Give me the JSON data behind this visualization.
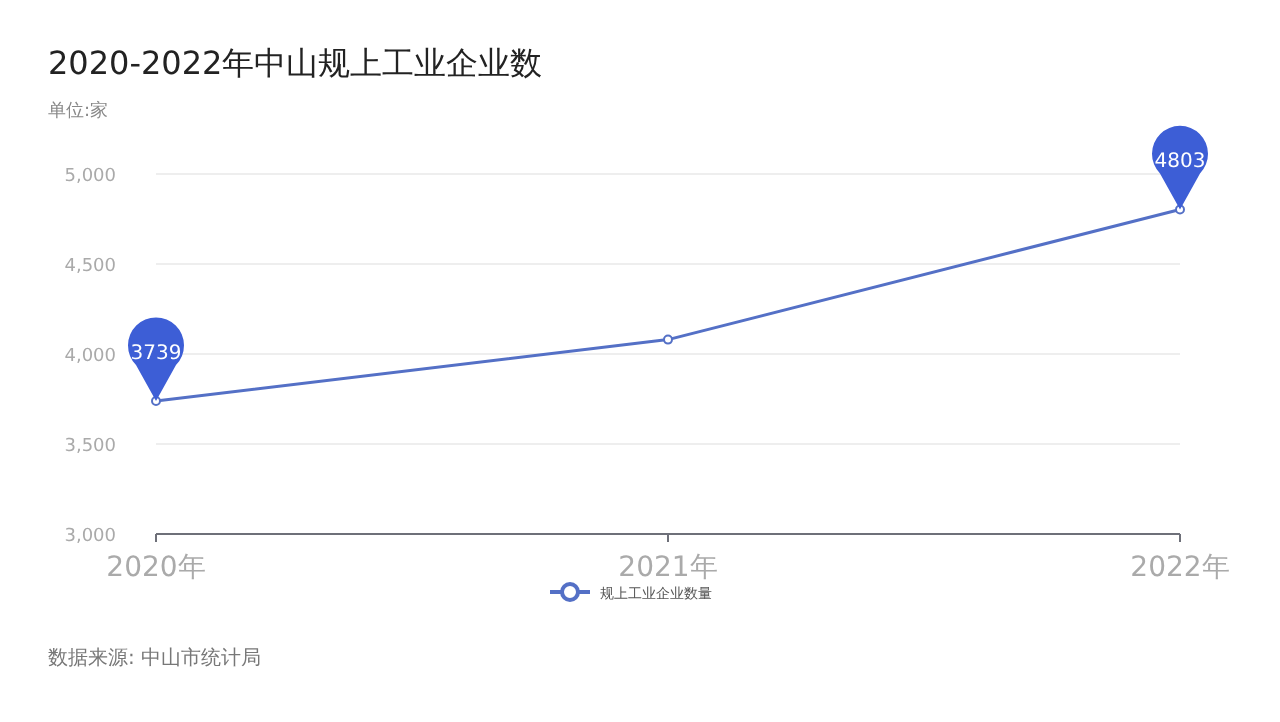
{
  "chart_data": {
    "type": "line",
    "title": "2020-2022年中山规上工业企业数",
    "ylabel": "单位:家",
    "categories": [
      "2020年",
      "2021年",
      "2022年"
    ],
    "series": [
      {
        "name": "规上工业企业数量",
        "color": "#5470c6",
        "values": [
          3739,
          4080,
          4803
        ]
      }
    ],
    "ylim": [
      3000,
      5000
    ],
    "yticks": [
      {
        "value": 3000,
        "label": "3,000"
      },
      {
        "value": 3500,
        "label": "3,500"
      },
      {
        "value": 4000,
        "label": "4,000"
      },
      {
        "value": 4500,
        "label": "4,500"
      },
      {
        "value": 5000,
        "label": "5,000"
      }
    ],
    "grid": "y",
    "legend": "bottom",
    "marker": "circle",
    "annotations": [
      {
        "text": "3739",
        "x": "2020年",
        "y": 3739
      },
      {
        "text": "4803",
        "x": "2022年",
        "y": 4803
      },
      "数据来源: 中山市统计局"
    ]
  }
}
